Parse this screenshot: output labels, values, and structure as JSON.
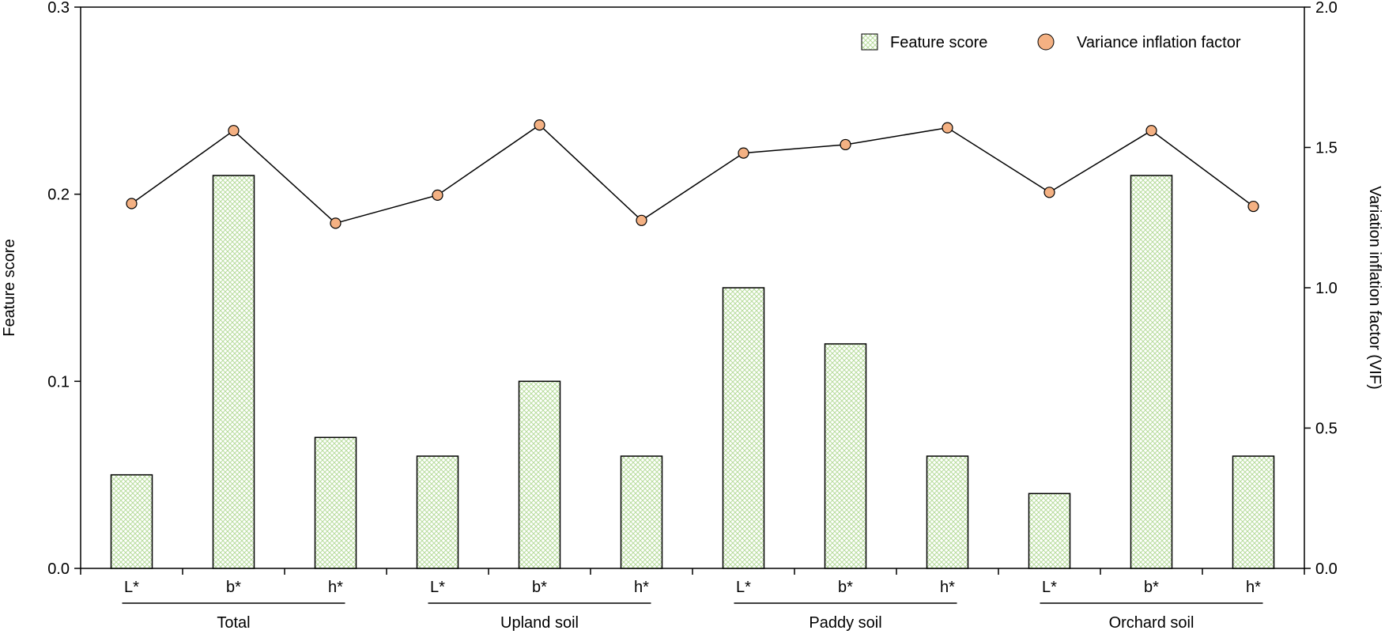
{
  "chart_data": {
    "type": "bar",
    "groups": [
      {
        "name": "Total",
        "categories": [
          "L*",
          "b*",
          "h*"
        ]
      },
      {
        "name": "Upland soil",
        "categories": [
          "L*",
          "b*",
          "h*"
        ]
      },
      {
        "name": "Paddy soil",
        "categories": [
          "L*",
          "b*",
          "h*"
        ]
      },
      {
        "name": "Orchard soil",
        "categories": [
          "L*",
          "b*",
          "h*"
        ]
      }
    ],
    "series": [
      {
        "name": "Feature score",
        "type": "bar",
        "axis": "left",
        "color": "#b7dc9c",
        "values": [
          0.05,
          0.21,
          0.07,
          0.06,
          0.1,
          0.06,
          0.15,
          0.12,
          0.06,
          0.04,
          0.21,
          0.06
        ]
      },
      {
        "name": "Variance inflation factor",
        "type": "line",
        "axis": "right",
        "color": "#f4b183",
        "values": [
          1.3,
          1.56,
          1.23,
          1.33,
          1.58,
          1.24,
          1.48,
          1.51,
          1.57,
          1.34,
          1.56,
          1.29
        ]
      }
    ],
    "ylabel": "Feature score",
    "ylim": [
      0,
      0.3
    ],
    "yticks": [
      "0.0",
      "0.1",
      "0.2",
      "0.3"
    ],
    "y2label": "Variation inflation factor (VIF)",
    "y2lim": [
      0,
      2.0
    ],
    "y2ticks": [
      "0.0",
      "0.5",
      "1.0",
      "1.5",
      "2.0"
    ],
    "legend_position": "top-right",
    "grid": false
  }
}
